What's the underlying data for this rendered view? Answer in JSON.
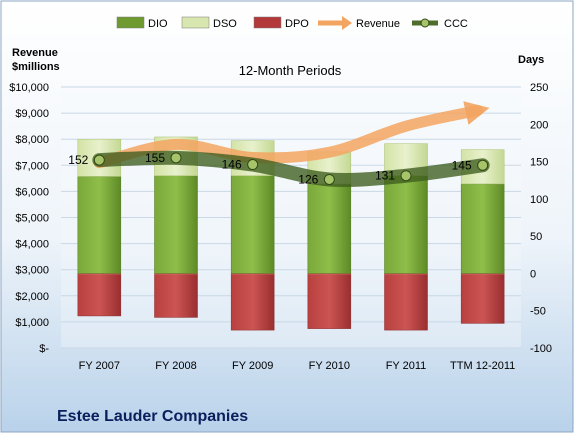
{
  "chart_data": {
    "type": "bar",
    "title": "12-Month Periods",
    "company": "Estee Lauder Companies",
    "left_axis": {
      "label_line1": "Revenue",
      "label_line2": "$millions",
      "ticks": [
        "$-",
        "$1,000",
        "$2,000",
        "$3,000",
        "$4,000",
        "$5,000",
        "$6,000",
        "$7,000",
        "$8,000",
        "$9,000",
        "$10,000"
      ],
      "range": [
        0,
        10000
      ]
    },
    "right_axis": {
      "label": "Days",
      "ticks": [
        "-100",
        "-50",
        "0",
        "50",
        "100",
        "150",
        "200",
        "250"
      ],
      "range": [
        -100,
        250
      ]
    },
    "categories": [
      "FY 2007",
      "FY 2008",
      "FY 2009",
      "FY 2010",
      "FY 2011",
      "TTM 12-2011"
    ],
    "legend": [
      {
        "key": "dio",
        "label": "DIO",
        "color": "#6e9a2f"
      },
      {
        "key": "dso",
        "label": "DSO",
        "color": "#d8e6b0"
      },
      {
        "key": "dpo",
        "label": "DPO",
        "color": "#b2383a"
      },
      {
        "key": "revenue",
        "label": "Revenue",
        "color": "#f3a460"
      },
      {
        "key": "ccc",
        "label": "CCC",
        "color": "#4e6e2a"
      }
    ],
    "series": [
      {
        "key": "dio",
        "name": "DIO",
        "axis": "days",
        "values": [
          130,
          131,
          131,
          120,
          131,
          120
        ]
      },
      {
        "key": "dso",
        "name": "DSO",
        "axis": "days",
        "values": [
          50,
          52,
          47,
          43,
          43,
          46
        ]
      },
      {
        "key": "dpo",
        "name": "DPO",
        "axis": "days",
        "values": [
          -57,
          -59,
          -76,
          -74,
          -76,
          -67
        ]
      },
      {
        "key": "revenue",
        "name": "Revenue",
        "axis": "revenue",
        "values": [
          7100,
          7800,
          7300,
          7500,
          8500,
          9100
        ]
      },
      {
        "key": "ccc",
        "name": "CCC",
        "axis": "days",
        "values": [
          152,
          155,
          146,
          126,
          131,
          145
        ],
        "labels": [
          "152",
          "155",
          "146",
          "126",
          "131",
          "145"
        ]
      }
    ]
  }
}
